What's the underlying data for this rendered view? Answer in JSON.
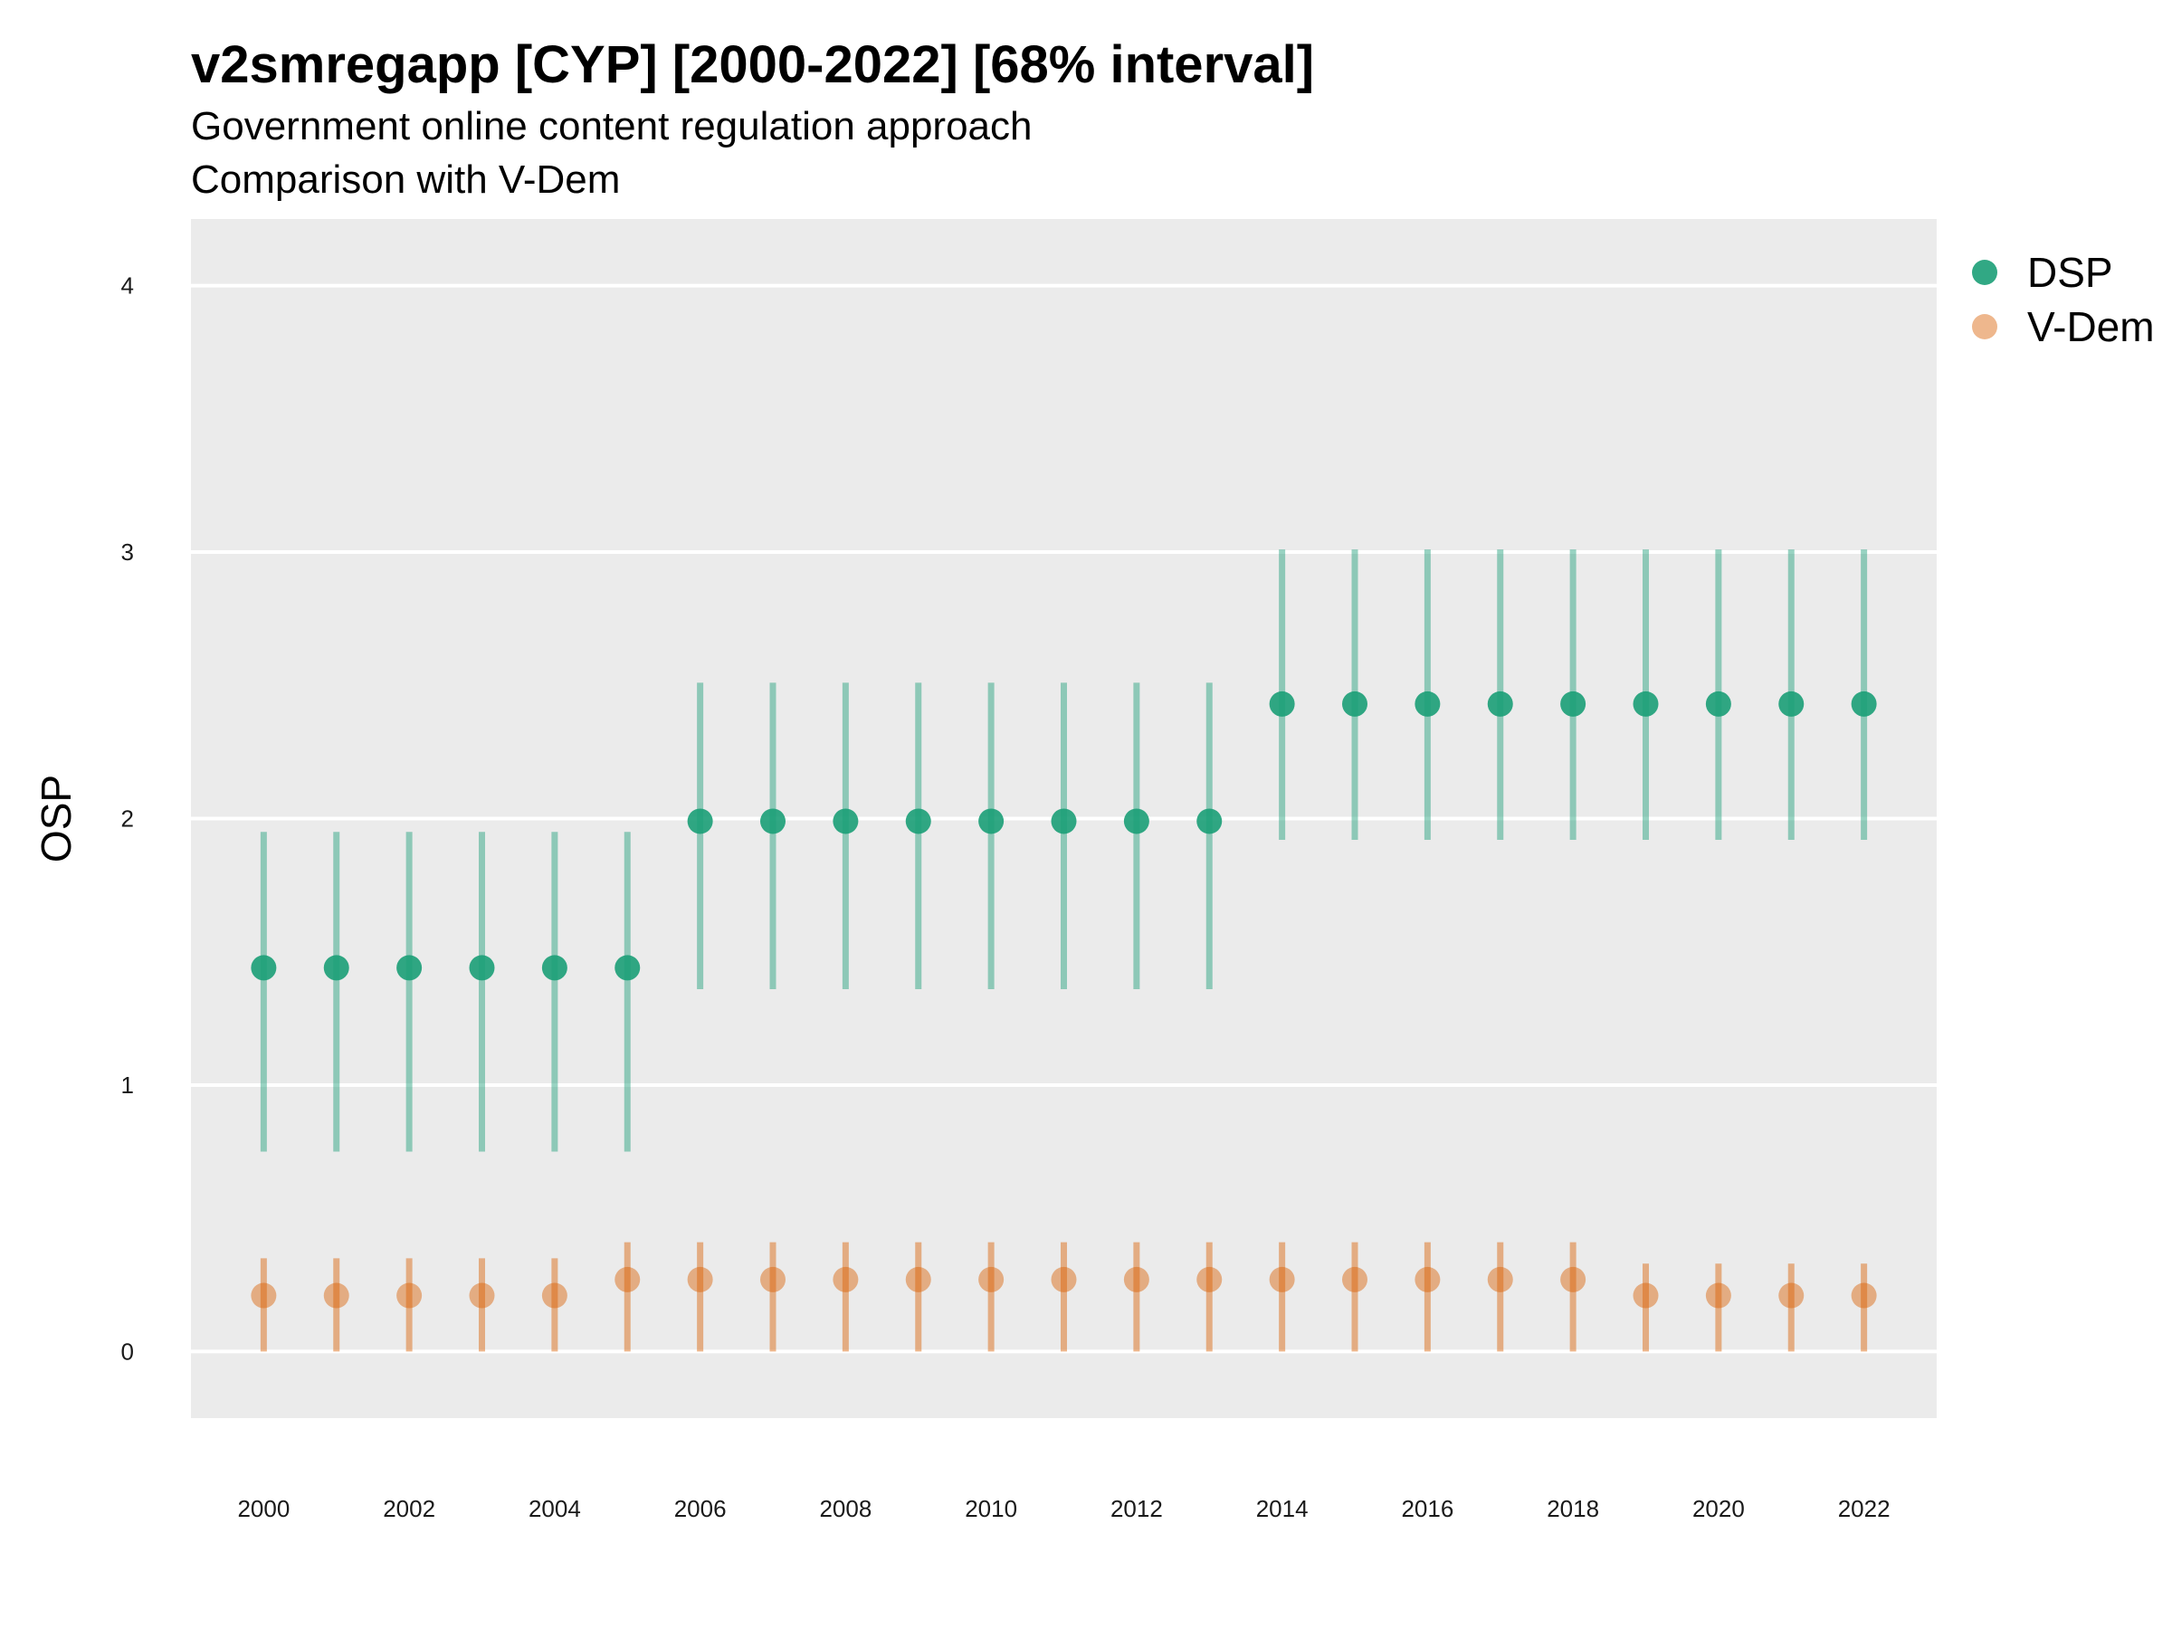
{
  "chart_data": {
    "type": "scatter",
    "title": "v2smregapp [CYP] [2000-2022] [68% interval]",
    "subtitle": "Government online content regulation approach",
    "caption": "Comparison with V-Dem",
    "xlabel": "",
    "ylabel": "OSP",
    "ylim": [
      -0.25,
      4.25
    ],
    "xlim": [
      1999,
      2023
    ],
    "y_ticks": [
      0,
      1,
      2,
      3,
      4
    ],
    "x_ticks": [
      2000,
      2002,
      2004,
      2006,
      2008,
      2010,
      2012,
      2014,
      2016,
      2018,
      2020,
      2022
    ],
    "grid": true,
    "legend_position": "right",
    "x": [
      2000,
      2001,
      2002,
      2003,
      2004,
      2005,
      2006,
      2007,
      2008,
      2009,
      2010,
      2011,
      2012,
      2013,
      2014,
      2015,
      2016,
      2017,
      2018,
      2019,
      2020,
      2021,
      2022
    ],
    "series": [
      {
        "name": "DSP",
        "color": "#1b9e77",
        "values": [
          1.44,
          1.44,
          1.44,
          1.44,
          1.44,
          1.44,
          1.99,
          1.99,
          1.99,
          1.99,
          1.99,
          1.99,
          1.99,
          1.99,
          2.43,
          2.43,
          2.43,
          2.43,
          2.43,
          2.43,
          2.43,
          2.43,
          2.43
        ],
        "lower": [
          0.75,
          0.75,
          0.75,
          0.75,
          0.75,
          0.75,
          1.36,
          1.36,
          1.36,
          1.36,
          1.36,
          1.36,
          1.36,
          1.36,
          1.92,
          1.92,
          1.92,
          1.92,
          1.92,
          1.92,
          1.92,
          1.92,
          1.92
        ],
        "upper": [
          1.95,
          1.95,
          1.95,
          1.95,
          1.95,
          1.95,
          2.51,
          2.51,
          2.51,
          2.51,
          2.51,
          2.51,
          2.51,
          2.51,
          3.01,
          3.01,
          3.01,
          3.01,
          3.01,
          3.01,
          3.01,
          3.01,
          3.01
        ]
      },
      {
        "name": "V-Dem",
        "color": "#d95f02",
        "values": [
          0.21,
          0.21,
          0.21,
          0.21,
          0.21,
          0.27,
          0.27,
          0.27,
          0.27,
          0.27,
          0.27,
          0.27,
          0.27,
          0.27,
          0.27,
          0.27,
          0.27,
          0.27,
          0.27,
          0.21,
          0.21,
          0.21,
          0.21
        ],
        "lower": [
          0,
          0,
          0,
          0,
          0,
          0,
          0,
          0,
          0,
          0,
          0,
          0,
          0,
          0,
          0,
          0,
          0,
          0,
          0,
          0,
          0,
          0,
          0
        ],
        "upper": [
          0.35,
          0.35,
          0.35,
          0.35,
          0.35,
          0.41,
          0.41,
          0.41,
          0.41,
          0.41,
          0.41,
          0.41,
          0.41,
          0.41,
          0.41,
          0.41,
          0.41,
          0.41,
          0.41,
          0.33,
          0.33,
          0.33,
          0.33
        ]
      }
    ]
  }
}
